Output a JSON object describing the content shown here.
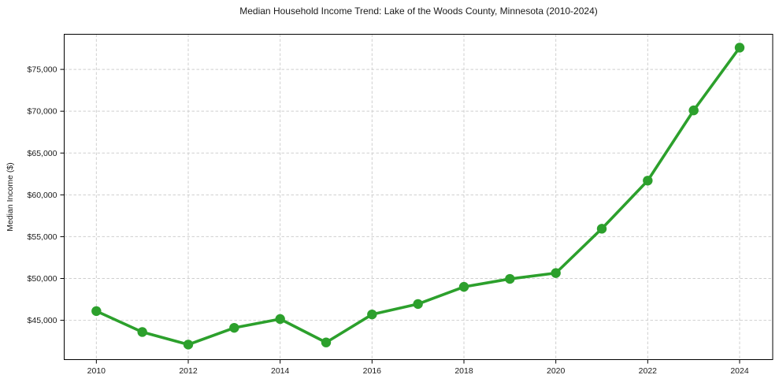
{
  "chart_data": {
    "type": "line",
    "title": "Median Household Income Trend: Lake of the Woods County, Minnesota (2010-2024)",
    "xlabel": "",
    "ylabel": "Median Income ($)",
    "x": [
      2010,
      2011,
      2012,
      2013,
      2014,
      2015,
      2016,
      2017,
      2018,
      2019,
      2020,
      2021,
      2022,
      2023,
      2024
    ],
    "values": [
      46100,
      43600,
      42100,
      44100,
      45150,
      42350,
      45700,
      46950,
      49000,
      49950,
      50650,
      55950,
      61700,
      70100,
      77600
    ],
    "x_tick_values": [
      2010,
      2012,
      2014,
      2016,
      2018,
      2020,
      2022,
      2024
    ],
    "x_tick_labels": [
      "2010",
      "2012",
      "2014",
      "2016",
      "2018",
      "2020",
      "2022",
      "2024"
    ],
    "y_tick_values": [
      45000,
      50000,
      55000,
      60000,
      65000,
      70000,
      75000
    ],
    "y_tick_labels": [
      "$45,000",
      "$50,000",
      "$55,000",
      "$60,000",
      "$65,000",
      "$70,000",
      "$75,000"
    ],
    "xlim": [
      2009.3,
      2024.72
    ],
    "ylim": [
      40300,
      79200
    ],
    "grid": "dashed-both",
    "legend_position": "none",
    "line_color": "#2ca02c",
    "marker_color": "#2ca02c",
    "marker": "circle",
    "grid_color": "#cfcfcf",
    "axis_color": "#000000",
    "text_color": "#1a1a1a"
  }
}
